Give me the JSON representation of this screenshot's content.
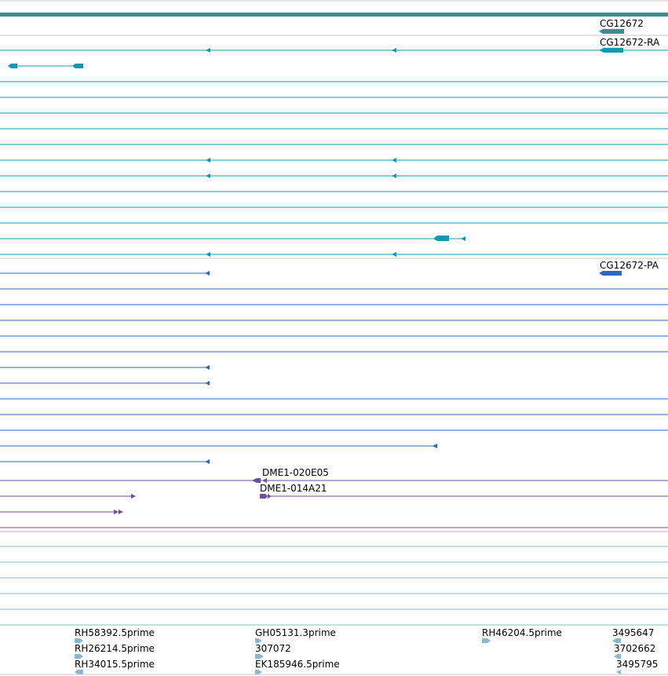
{
  "colors": {
    "gene_span": "#3a8f8d",
    "transcript_teal": "#1597b0",
    "protein_blue": "#2f67c6",
    "clone_purple": "#6b4fa1",
    "est_lightblue": "#86b8d2",
    "divider_gray": "#c8c8c8",
    "divider_pink": "#d9a7b3"
  },
  "labels": {
    "gene": "CG12672",
    "transcript": "CG12672-RA",
    "protein": "CG12672-PA",
    "clone_1": "DME1-020E05",
    "clone_2": "DME1-014A21",
    "est_rh58392": "RH58392.5prime",
    "est_rh26214": "RH26214.5prime",
    "est_rh34015": "RH34015.5prime",
    "est_gh05131": "GH05131.3prime",
    "est_307072": "307072",
    "est_ek185946": "EK185946.5prime",
    "est_rh46204": "RH46204.5prime",
    "est_3495647": "3495647",
    "est_3702662": "3702662",
    "est_3495795": "3495795"
  }
}
